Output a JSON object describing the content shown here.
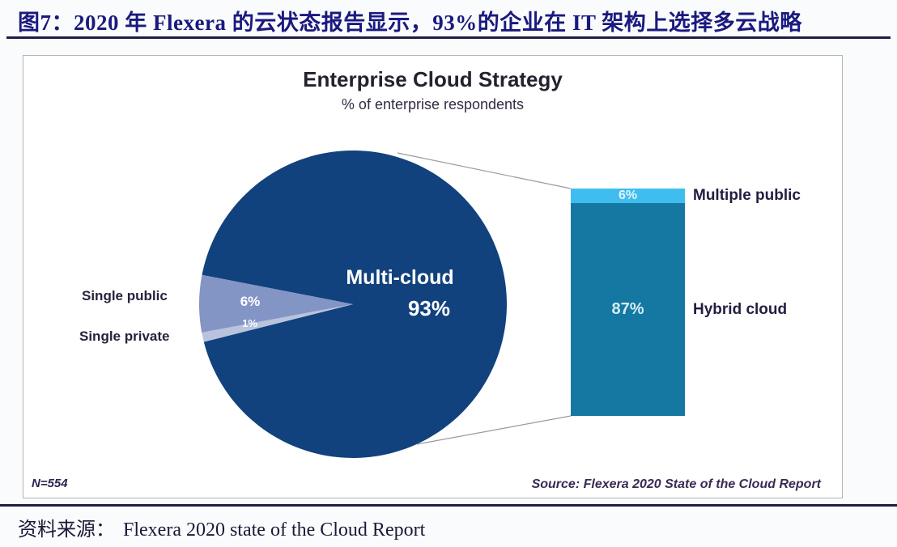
{
  "page": {
    "figure_title": "图7：2020 年 Flexera 的云状态报告显示，93%的企业在 IT 架构上选择多云战略",
    "footer": {
      "label": "资料来源：",
      "text": "Flexera 2020 state of the Cloud Report"
    }
  },
  "colors": {
    "header_blue": "#19197e",
    "rule_dark": "#1e1e44",
    "panel_border": "#b5b5b5",
    "connector_gray": "#9a9a9a"
  },
  "chart_data": {
    "type": "pie-with-breakdown-bar",
    "title": "Enterprise Cloud Strategy",
    "subtitle": "% of enterprise respondents",
    "sample_label": "N=554",
    "source_label": "Source: Flexera 2020 State of the Cloud Report",
    "pie": {
      "start_angle_deg": 169,
      "slices": [
        {
          "label": "Single public",
          "value": 6,
          "value_label": "6%",
          "color": "#8295c5"
        },
        {
          "label": "Single private",
          "value": 1,
          "value_label": "1%",
          "color": "#b9c3dd"
        },
        {
          "label": "Multi-cloud",
          "value": 93,
          "value_label": "93%",
          "color": "#12427e"
        }
      ]
    },
    "bar": {
      "represents": "Multi-cloud 93% breakdown",
      "segments": [
        {
          "label": "Multiple public",
          "value": 6,
          "value_label": "6%",
          "color": "#3fbdee",
          "text_color": "#dff4fc"
        },
        {
          "label": "Hybrid cloud",
          "value": 87,
          "value_label": "87%",
          "color": "#1478a2",
          "text_color": "#d6edf6"
        }
      ]
    }
  }
}
